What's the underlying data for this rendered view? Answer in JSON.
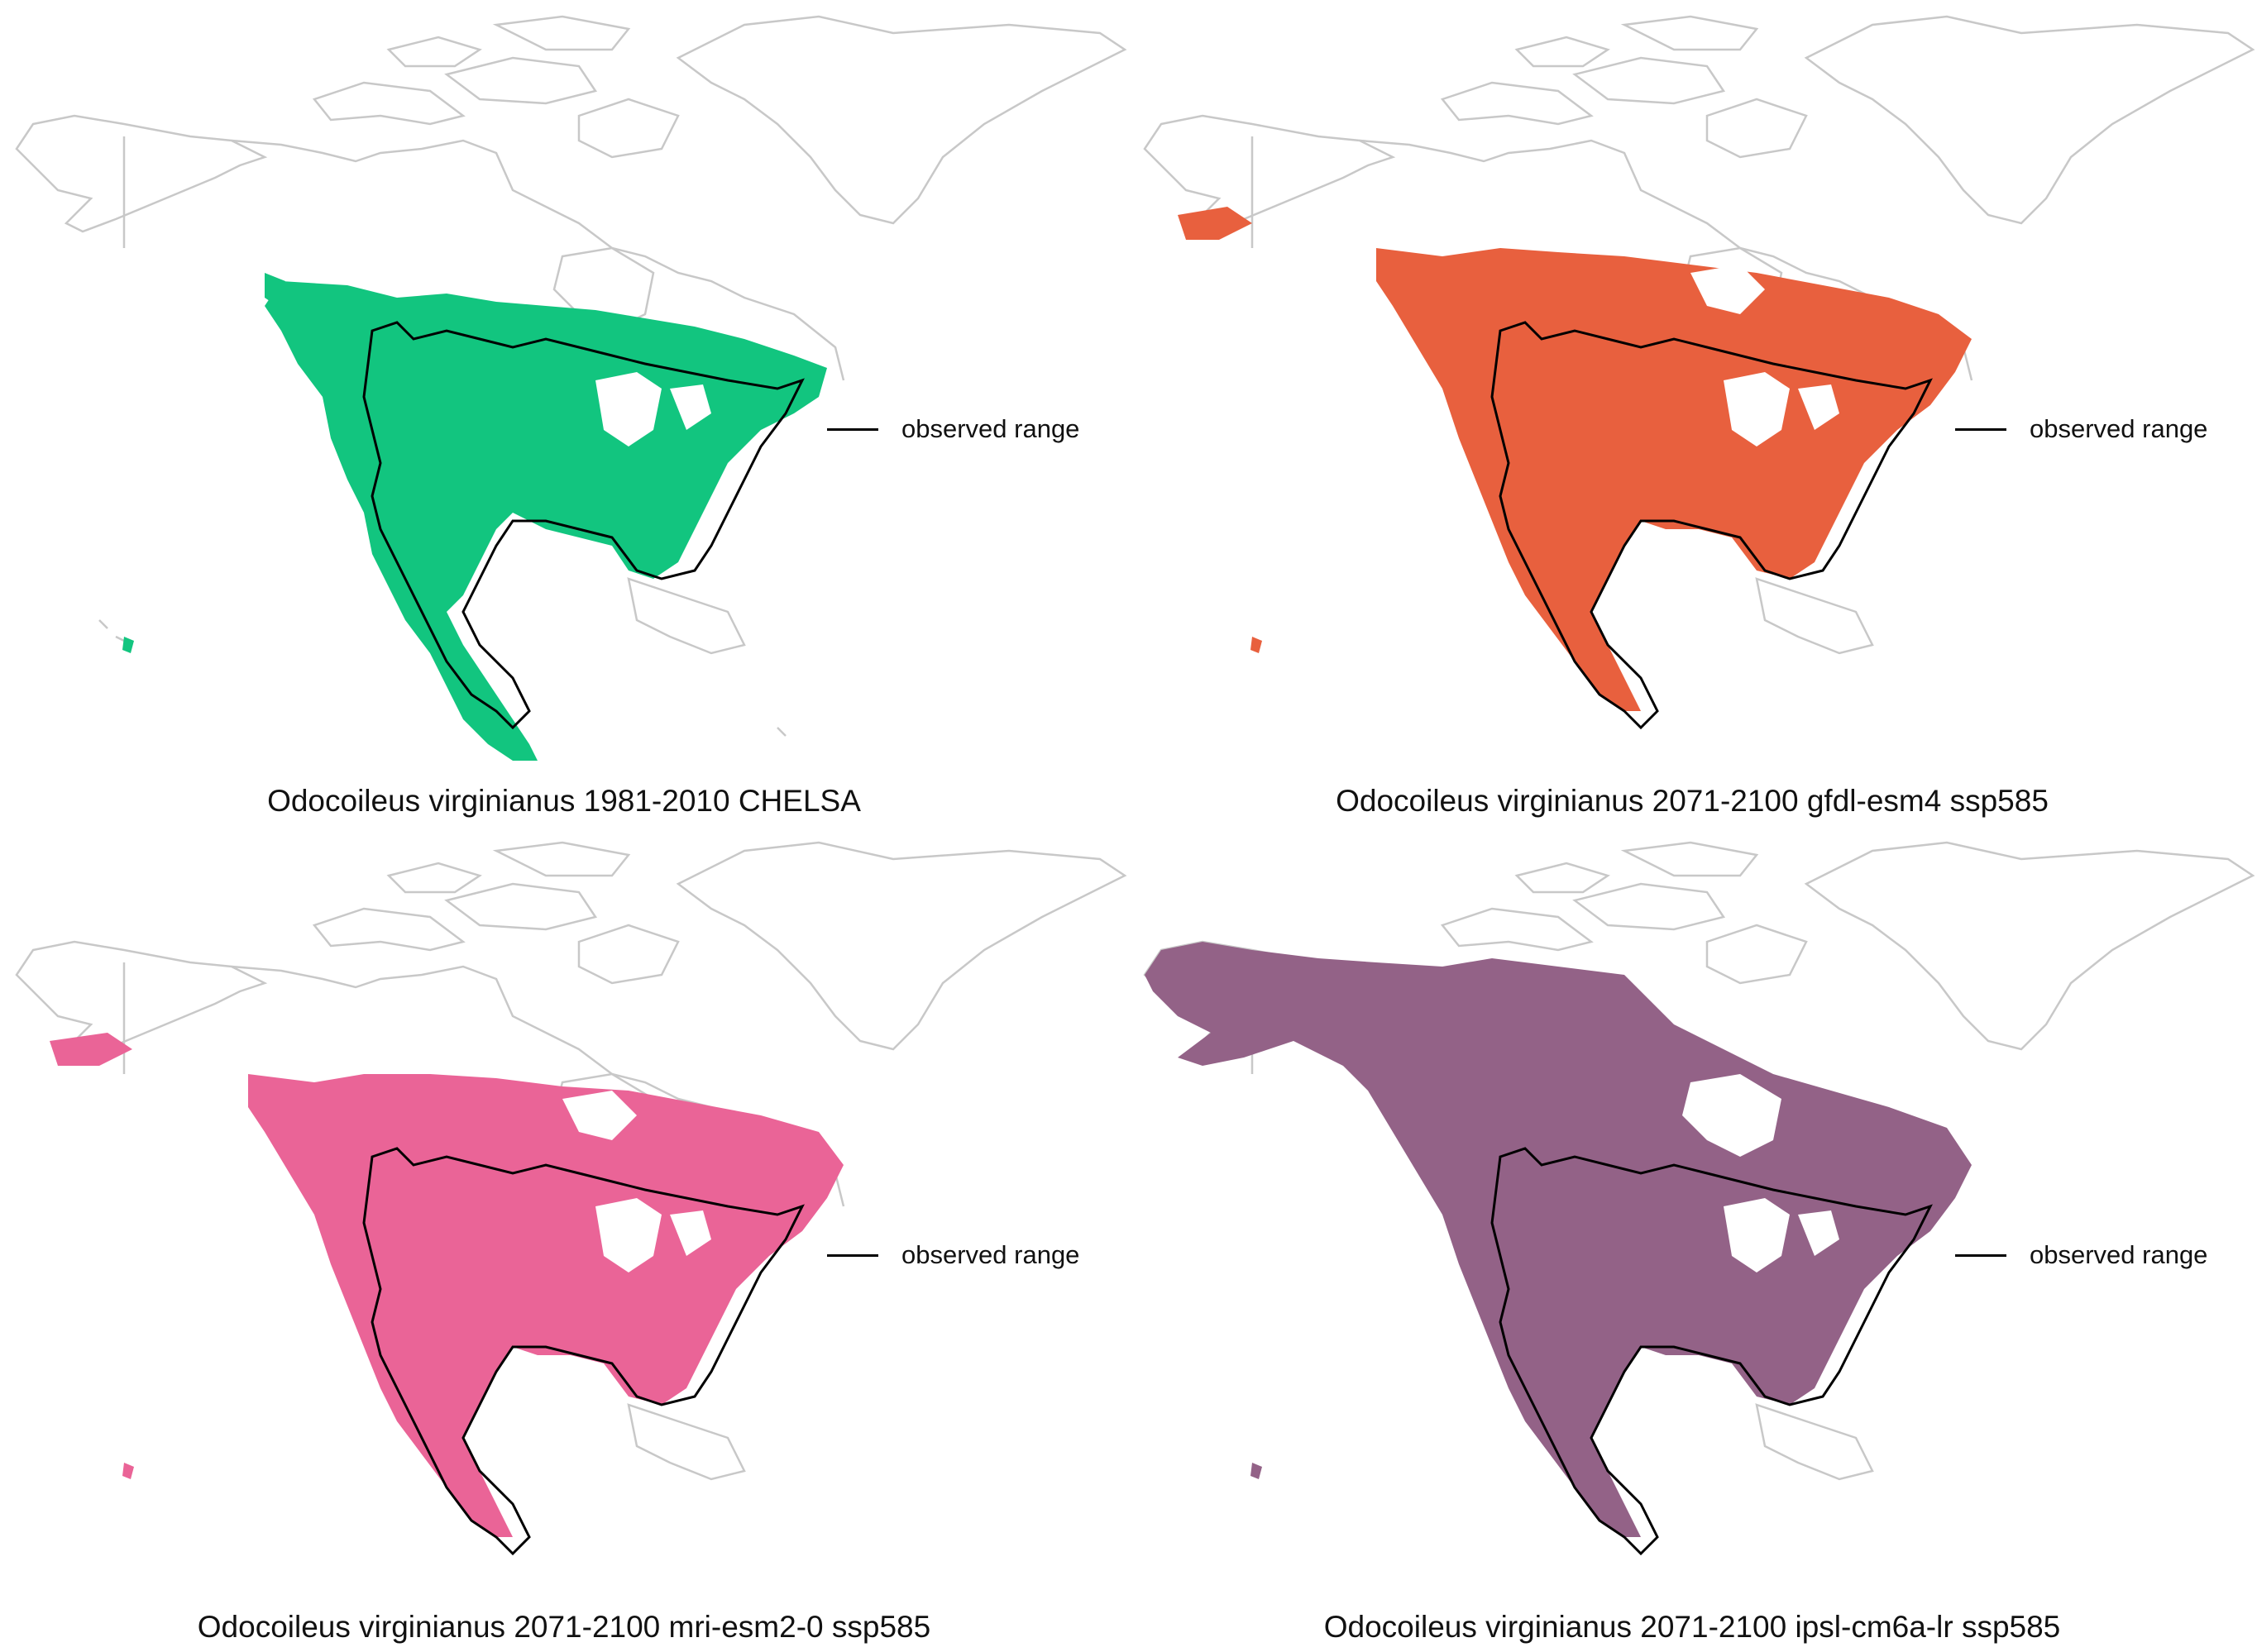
{
  "legend": {
    "label": "observed range"
  },
  "colors": {
    "outline": "#c8c8c8",
    "range": "#000000"
  },
  "panels": [
    {
      "id": "p1",
      "caption": "Odocoileus virginianus 1981-2010 CHELSA",
      "fill": "#12c57f"
    },
    {
      "id": "p2",
      "caption": "Odocoileus virginianus 2071-2100 gfdl-esm4 ssp585",
      "fill": "#e8603e"
    },
    {
      "id": "p3",
      "caption": "Odocoileus virginianus 2071-2100 mri-esm2-0 ssp585",
      "fill": "#ea6497"
    },
    {
      "id": "p4",
      "caption": "Odocoileus virginianus 2071-2100 ipsl-cm6a-lr ssp585",
      "fill": "#936287"
    }
  ]
}
